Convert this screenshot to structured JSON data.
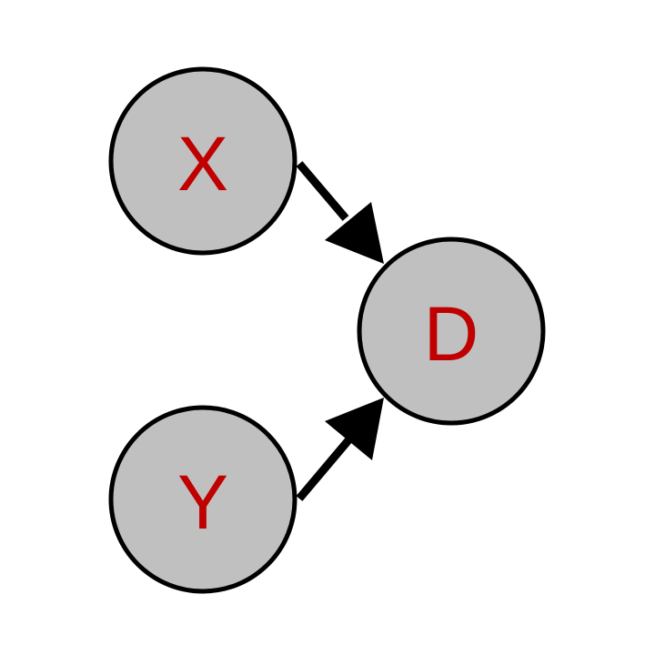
{
  "nodes": [
    {
      "id": "x",
      "label": "X"
    },
    {
      "id": "y",
      "label": "Y"
    },
    {
      "id": "d",
      "label": "D"
    }
  ],
  "edges": [
    {
      "from": "X",
      "to": "D"
    },
    {
      "from": "Y",
      "to": "D"
    }
  ],
  "colors": {
    "node_fill": "#c0c0c0",
    "node_stroke": "#000000",
    "label": "#c00000",
    "arrow": "#000000"
  }
}
